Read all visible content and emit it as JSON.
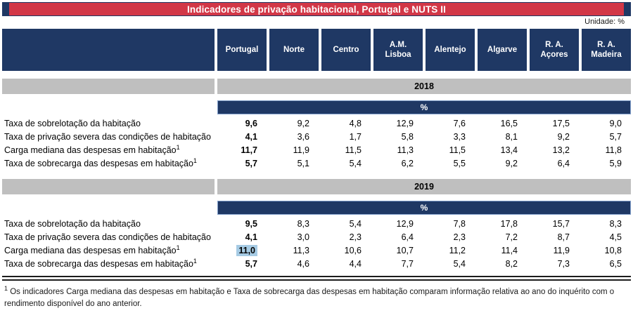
{
  "title": "Indicadores de privação habitacional, Portugal e NUTS II",
  "unit_label": "Unidade: %",
  "columns": [
    "Portugal",
    "Norte",
    "Centro",
    "A.M. Lisboa",
    "Alentejo",
    "Algarve",
    "R. A. Açores",
    "R. A. Madeira"
  ],
  "sections": [
    {
      "year": "2018",
      "unit_band": "%",
      "rows": [
        {
          "label": "Taxa de sobrelotação da habitação",
          "sup": "",
          "values": [
            "9,6",
            "9,2",
            "4,8",
            "12,9",
            "7,6",
            "16,5",
            "17,5",
            "9,0"
          ]
        },
        {
          "label": "Taxa de privação severa das condições de habitação",
          "sup": "",
          "values": [
            "4,1",
            "3,6",
            "1,7",
            "5,8",
            "3,3",
            "8,1",
            "9,2",
            "5,7"
          ]
        },
        {
          "label": "Carga mediana das despesas em habitação",
          "sup": "1",
          "values": [
            "11,7",
            "11,9",
            "11,5",
            "11,3",
            "11,5",
            "13,4",
            "13,2",
            "11,8"
          ]
        },
        {
          "label": "Taxa de sobrecarga das despesas em habitação",
          "sup": "1",
          "values": [
            "5,7",
            "5,1",
            "5,4",
            "6,2",
            "5,5",
            "9,2",
            "6,4",
            "5,9"
          ]
        }
      ]
    },
    {
      "year": "2019",
      "unit_band": "%",
      "rows": [
        {
          "label": "Taxa de sobrelotação da habitação",
          "sup": "",
          "values": [
            "9,5",
            "8,3",
            "5,4",
            "12,9",
            "7,8",
            "17,8",
            "15,7",
            "8,3"
          ]
        },
        {
          "label": "Taxa de privação severa das condições de habitação",
          "sup": "",
          "values": [
            "4,1",
            "3,0",
            "2,3",
            "6,4",
            "2,3",
            "7,2",
            "8,7",
            "4,5"
          ]
        },
        {
          "label": "Carga mediana das despesas em habitação",
          "sup": "1",
          "values": [
            "11,0",
            "11,3",
            "10,6",
            "10,7",
            "11,2",
            "11,4",
            "11,9",
            "10,8"
          ]
        },
        {
          "label": "Taxa de sobrecarga das despesas em habitação",
          "sup": "1",
          "values": [
            "5,7",
            "4,6",
            "4,4",
            "7,7",
            "5,4",
            "8,2",
            "7,3",
            "6,5"
          ]
        }
      ]
    }
  ],
  "highlight": {
    "section_index": 1,
    "row_index": 2,
    "col_index": 0
  },
  "footnote": {
    "sup": "1",
    "text": "Os indicadores Carga mediana das despesas em habitação e Taxa de sobrecarga das despesas em habitação comparam informação relativa ao ano do inquérito com o rendimento disponível do ano anterior."
  },
  "colors": {
    "accent_red": "#d23747",
    "header_navy": "#1f3864",
    "band_gray": "#bfbfbf",
    "highlight_blue": "#a6cbe4"
  }
}
